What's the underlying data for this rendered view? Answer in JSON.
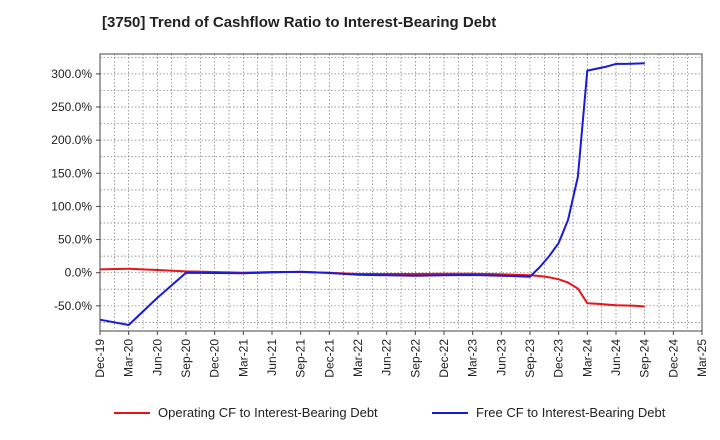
{
  "chart_data": {
    "type": "line",
    "title": "[3750]  Trend of Cashflow Ratio to Interest-Bearing Debt",
    "x_categories": [
      "Dec-19",
      "Mar-20",
      "Jun-20",
      "Sep-20",
      "Dec-20",
      "Mar-21",
      "Jun-21",
      "Sep-21",
      "Dec-21",
      "Mar-22",
      "Jun-22",
      "Sep-22",
      "Dec-22",
      "Mar-23",
      "Jun-23",
      "Sep-23",
      "Dec-23",
      "Mar-24",
      "Jun-24",
      "Sep-24",
      "Dec-24",
      "Mar-25"
    ],
    "ylim": [
      -88,
      330
    ],
    "y_ticks": [
      -50,
      0,
      50,
      100,
      150,
      200,
      250,
      300
    ],
    "y_tick_labels": [
      "-50.0%",
      "0.0%",
      "50.0%",
      "100.0%",
      "150.0%",
      "200.0%",
      "250.0%",
      "300.0%"
    ],
    "grid": true,
    "legend_position": "bottom",
    "series": [
      {
        "name": "Operating CF to Interest-Bearing Debt",
        "color": "#e8141b",
        "points": [
          [
            0,
            5
          ],
          [
            1,
            6
          ],
          [
            2,
            4
          ],
          [
            3,
            2
          ],
          [
            4,
            1
          ],
          [
            5,
            0
          ],
          [
            6,
            1
          ],
          [
            7,
            1
          ],
          [
            8,
            0
          ],
          [
            9,
            -2
          ],
          [
            10,
            -2
          ],
          [
            11,
            -2
          ],
          [
            12,
            -1.5
          ],
          [
            13,
            -1.5
          ],
          [
            14,
            -2.5
          ],
          [
            15,
            -4
          ],
          [
            15.33,
            -5
          ],
          [
            15.67,
            -7
          ],
          [
            16,
            -10
          ],
          [
            16.33,
            -15
          ],
          [
            16.67,
            -24
          ],
          [
            17,
            -46
          ],
          [
            17.33,
            -47
          ],
          [
            17.67,
            -48
          ],
          [
            18,
            -49
          ],
          [
            18.33,
            -49.5
          ],
          [
            18.67,
            -50
          ],
          [
            19,
            -51
          ]
        ]
      },
      {
        "name": "Free CF to Interest-Bearing Debt",
        "color": "#1a1adc",
        "points": [
          [
            0,
            -71
          ],
          [
            1,
            -79
          ],
          [
            2,
            -38
          ],
          [
            3,
            0
          ],
          [
            4,
            -0.5
          ],
          [
            5,
            -1
          ],
          [
            6,
            0.5
          ],
          [
            7,
            1.5
          ],
          [
            8,
            -0.5
          ],
          [
            9,
            -3
          ],
          [
            10,
            -4
          ],
          [
            11,
            -4.5
          ],
          [
            12,
            -4
          ],
          [
            13,
            -3.5
          ],
          [
            14,
            -4.5
          ],
          [
            15,
            -6
          ],
          [
            15.33,
            8
          ],
          [
            15.67,
            25
          ],
          [
            16,
            45
          ],
          [
            16.33,
            80
          ],
          [
            16.67,
            145
          ],
          [
            17,
            305
          ],
          [
            17.33,
            308
          ],
          [
            17.67,
            311
          ],
          [
            18,
            315
          ],
          [
            18.33,
            315
          ],
          [
            18.67,
            315.5
          ],
          [
            19,
            316
          ]
        ]
      }
    ]
  }
}
